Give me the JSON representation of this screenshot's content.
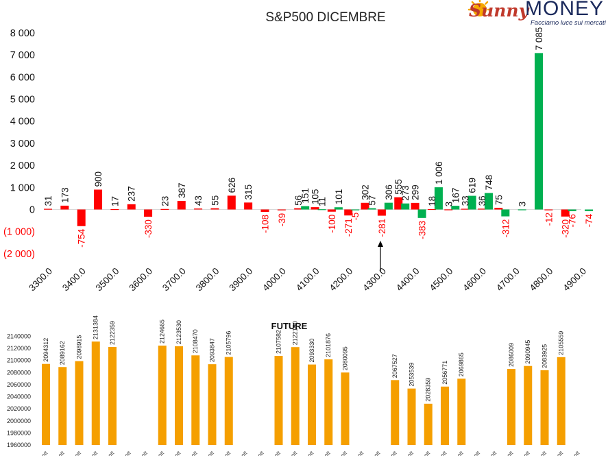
{
  "logo": {
    "brand_a": "Sunny",
    "brand_b": "MONEY",
    "tagline": "Facciamo luce sui mercati",
    "colors": {
      "sun": "#f6a800",
      "money": "#1b2a5c",
      "sunny_text": "#c0392b"
    }
  },
  "colors": {
    "positive": "#00b050",
    "negative": "#ff0000",
    "future_bar": "#f59f00",
    "neg_label": "#ff0000",
    "pos_label": "#111111"
  },
  "chart_data": [
    {
      "type": "bar",
      "title": "S&P500 DICEMBRE",
      "xlabel": "",
      "ylabel": "",
      "ylim": [
        -2000,
        8000
      ],
      "y_ticks": [
        8000,
        7000,
        6000,
        5000,
        4000,
        3000,
        2000,
        1000,
        0,
        -1000,
        -2000
      ],
      "y_tick_labels": [
        "8 000",
        "7 000",
        "6 000",
        "5 000",
        "4 000",
        "3 000",
        "2 000",
        "1 000",
        "0",
        "(1 000)",
        "(2 000)"
      ],
      "x_ticks": [
        3300,
        3400,
        3500,
        3600,
        3700,
        3800,
        3900,
        4000,
        4100,
        4200,
        4300,
        4400,
        4500,
        4600,
        4700,
        4800,
        4900
      ],
      "x_tick_labels": [
        "3300.0",
        "3400.0",
        "3500.0",
        "3600.0",
        "3700.0",
        "3800.0",
        "3900.0",
        "4000.0",
        "4100.0",
        "4200.0",
        "4300.0",
        "4400.0",
        "4500.0",
        "4600.0",
        "4700.0",
        "4800.0",
        "4900.0"
      ],
      "grid": false,
      "legend": "none",
      "annotation": "arrow at 4300",
      "series": [
        {
          "color": "red",
          "points": [
            {
              "x": 3300,
              "value": 31,
              "label": "31"
            },
            {
              "x": 3350,
              "value": 173,
              "label": "173"
            },
            {
              "x": 3400,
              "value": -754,
              "label": "-754"
            },
            {
              "x": 3450,
              "value": 900,
              "label": "900"
            },
            {
              "x": 3500,
              "value": 17,
              "label": "17"
            },
            {
              "x": 3550,
              "value": 237,
              "label": "237"
            },
            {
              "x": 3600,
              "value": -330,
              "label": "-330"
            },
            {
              "x": 3650,
              "value": 23,
              "label": "23"
            },
            {
              "x": 3700,
              "value": 387,
              "label": "387"
            },
            {
              "x": 3750,
              "value": 43,
              "label": "43"
            },
            {
              "x": 3800,
              "value": 55,
              "label": "55"
            },
            {
              "x": 3850,
              "value": 626,
              "label": "626"
            },
            {
              "x": 3900,
              "value": 315,
              "label": "315"
            },
            {
              "x": 3950,
              "value": -108,
              "label": "-108"
            },
            {
              "x": 4000,
              "value": -39,
              "label": "-39"
            },
            {
              "x": 4050,
              "value": 56,
              "label": "56"
            },
            {
              "x": 4100,
              "value": 105,
              "label": "105"
            },
            {
              "x": 4150,
              "value": -100,
              "label": "-100"
            },
            {
              "x": 4200,
              "value": -271,
              "label": "-271"
            },
            {
              "x": 4250,
              "value": 302,
              "label": "302"
            },
            {
              "x": 4300,
              "value": -281,
              "label": "-281"
            },
            {
              "x": 4350,
              "value": 555,
              "label": "555"
            },
            {
              "x": 4400,
              "value": 299,
              "label": "299"
            },
            {
              "x": 4450,
              "value": 18,
              "label": "18"
            },
            {
              "x": 4500,
              "value": 3,
              "label": "3"
            },
            {
              "x": 4550,
              "value": 33,
              "label": "33"
            },
            {
              "x": 4600,
              "value": 36,
              "label": "36"
            },
            {
              "x": 4650,
              "value": 75,
              "label": "75"
            },
            {
              "x": 4800,
              "value": -12,
              "label": "-12"
            },
            {
              "x": 4850,
              "value": -320,
              "label": "-320"
            }
          ]
        },
        {
          "color": "green",
          "points": [
            {
              "x": 4050,
              "value": 151,
              "label": "151"
            },
            {
              "x": 4100,
              "value": 11,
              "label": "11"
            },
            {
              "x": 4150,
              "value": 101,
              "label": "101"
            },
            {
              "x": 4200,
              "value": -5,
              "label": "-5"
            },
            {
              "x": 4250,
              "value": 57,
              "label": "57"
            },
            {
              "x": 4300,
              "value": 306,
              "label": "306"
            },
            {
              "x": 4350,
              "value": 273,
              "label": "273"
            },
            {
              "x": 4400,
              "value": -383,
              "label": "-383"
            },
            {
              "x": 4450,
              "value": 1006,
              "label": "1 006"
            },
            {
              "x": 4500,
              "value": 167,
              "label": "167"
            },
            {
              "x": 4550,
              "value": 619,
              "label": "619"
            },
            {
              "x": 4600,
              "value": 748,
              "label": "748"
            },
            {
              "x": 4650,
              "value": -312,
              "label": "-312"
            },
            {
              "x": 4700,
              "value": 3,
              "label": "3"
            },
            {
              "x": 4750,
              "value": 7085,
              "label": "7 085"
            },
            {
              "x": 4850,
              "value": -76,
              "label": "-76"
            },
            {
              "x": 4900,
              "value": -74,
              "label": "-74"
            }
          ]
        }
      ]
    },
    {
      "type": "bar",
      "title": "FUTURE",
      "xlabel": "",
      "ylabel": "",
      "ylim": [
        1960000,
        2140000
      ],
      "y_ticks": [
        2140000,
        2120000,
        2100000,
        2080000,
        2060000,
        2040000,
        2020000,
        2000000,
        1980000,
        1960000
      ],
      "y_tick_labels": [
        "2140000",
        "2120000",
        "2100000",
        "2080000",
        "2060000",
        "2040000",
        "2020000",
        "2000000",
        "1980000",
        "1960000"
      ],
      "x_tick_text": "ott",
      "slots": 33,
      "grid": false,
      "legend": "none",
      "bars": [
        {
          "slot": 0,
          "value": 2094312,
          "label": "2094312"
        },
        {
          "slot": 1,
          "value": 2089162,
          "label": "2089162"
        },
        {
          "slot": 2,
          "value": 2098915,
          "label": "2098915"
        },
        {
          "slot": 3,
          "value": 2131384,
          "label": "2131384"
        },
        {
          "slot": 4,
          "value": 2122359,
          "label": "2122359"
        },
        {
          "slot": 7,
          "value": 2124665,
          "label": "2124665"
        },
        {
          "slot": 8,
          "value": 2123530,
          "label": "2123530"
        },
        {
          "slot": 9,
          "value": 2108470,
          "label": "2108470"
        },
        {
          "slot": 10,
          "value": 2093847,
          "label": "2093847"
        },
        {
          "slot": 11,
          "value": 2105796,
          "label": "2105796"
        },
        {
          "slot": 14,
          "value": 2107582,
          "label": "2107582"
        },
        {
          "slot": 15,
          "value": 2122150,
          "label": "2122150"
        },
        {
          "slot": 16,
          "value": 2093330,
          "label": "2093330"
        },
        {
          "slot": 17,
          "value": 2101876,
          "label": "2101876"
        },
        {
          "slot": 18,
          "value": 2080095,
          "label": "2080095"
        },
        {
          "slot": 21,
          "value": 2067527,
          "label": "2067527"
        },
        {
          "slot": 22,
          "value": 2053539,
          "label": "2053539"
        },
        {
          "slot": 23,
          "value": 2028359,
          "label": "2028359"
        },
        {
          "slot": 24,
          "value": 2056771,
          "label": "2056771"
        },
        {
          "slot": 25,
          "value": 2069865,
          "label": "2069865"
        },
        {
          "slot": 28,
          "value": 2086009,
          "label": "2086009"
        },
        {
          "slot": 29,
          "value": 2090945,
          "label": "2090945"
        },
        {
          "slot": 30,
          "value": 2083925,
          "label": "2083925"
        },
        {
          "slot": 31,
          "value": 2105559,
          "label": "2105559"
        }
      ]
    }
  ]
}
